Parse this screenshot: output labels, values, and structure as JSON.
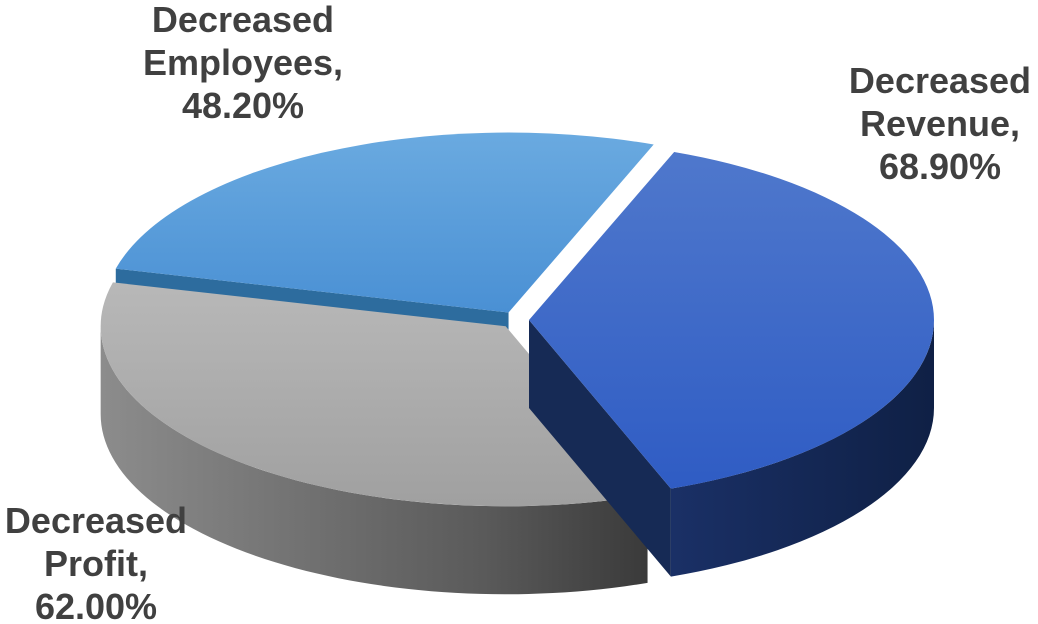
{
  "chart_data": {
    "type": "pie",
    "style": "3d-exploded",
    "slices": [
      {
        "label_line1": "Decreased",
        "label_line2": "Revenue,",
        "value_text": "68.90%",
        "value": 68.9,
        "color": "#3a67c8",
        "side_color": "#162a55"
      },
      {
        "label_line1": "Decreased",
        "label_line2": "Profit,",
        "value_text": "62.00%",
        "value": 62.0,
        "color": "#a6a6a6",
        "side_color": "#6e6e6e"
      },
      {
        "label_line1": "Decreased",
        "label_line2": "Employees,",
        "value_text": "48.20%",
        "value": 48.2,
        "color": "#4f96d6",
        "side_color": "#2d6c9e"
      }
    ]
  }
}
